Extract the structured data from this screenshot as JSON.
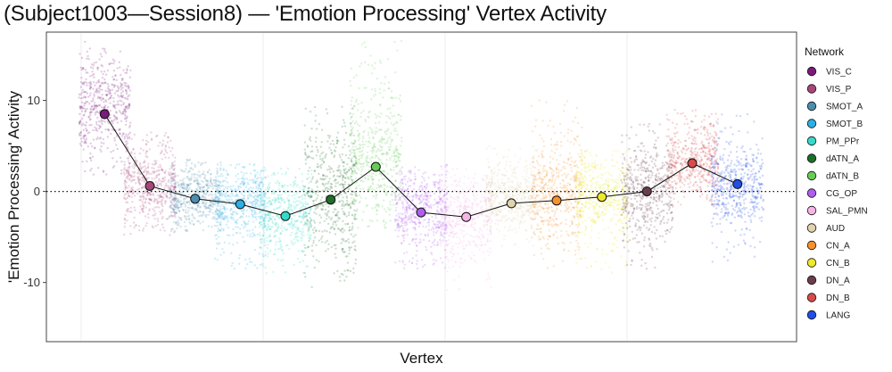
{
  "chart_data": {
    "type": "scatter",
    "title": "(Subject1003—Session8) — 'Emotion Processing' Vertex Activity",
    "xlabel": "Vertex",
    "ylabel": "'Emotion Processing' Activity",
    "ylim": [
      -16.5,
      17.5
    ],
    "yticks": [
      -10,
      0,
      10
    ],
    "ytick_labels": [
      "-10",
      "0",
      "10"
    ],
    "reference_line": 0,
    "legend_title": "Network",
    "legend_position": "right",
    "networks": [
      {
        "name": "VIS_C",
        "color": "#7B1A7B",
        "mean": 8.5,
        "range": [
          1.5,
          16.5
        ],
        "core": [
          5.5,
          13.5
        ]
      },
      {
        "name": "VIS_P",
        "color": "#A8467A",
        "mean": 0.6,
        "range": [
          -5.0,
          6.5
        ],
        "core": [
          -2.5,
          4.0
        ]
      },
      {
        "name": "SMOT_A",
        "color": "#4C8EAD",
        "mean": -0.8,
        "range": [
          -4.5,
          3.5
        ],
        "core": [
          -3.0,
          2.0
        ]
      },
      {
        "name": "SMOT_B",
        "color": "#2BB0E6",
        "mean": -1.4,
        "range": [
          -8.5,
          3.0
        ],
        "core": [
          -4.0,
          1.5
        ]
      },
      {
        "name": "PM_PPr",
        "color": "#36D9C9",
        "mean": -2.7,
        "range": [
          -9.0,
          2.5
        ],
        "core": [
          -5.5,
          0.5
        ]
      },
      {
        "name": "dATN_A",
        "color": "#1E6E2A",
        "mean": -0.9,
        "range": [
          -10.5,
          9.5
        ],
        "core": [
          -6.0,
          5.0
        ]
      },
      {
        "name": "dATN_B",
        "color": "#66CC55",
        "mean": 2.7,
        "range": [
          -4.0,
          17.0
        ],
        "core": [
          -1.5,
          9.0
        ]
      },
      {
        "name": "CG_OP",
        "color": "#B05CF0",
        "mean": -2.3,
        "range": [
          -8.5,
          3.0
        ],
        "core": [
          -5.0,
          1.0
        ]
      },
      {
        "name": "SAL_PMN",
        "color": "#F6B5E6",
        "mean": -2.8,
        "range": [
          -11.0,
          2.5
        ],
        "core": [
          -6.0,
          0.5
        ]
      },
      {
        "name": "AUD",
        "color": "#E0D3AE",
        "mean": -1.3,
        "range": [
          -6.0,
          5.0
        ],
        "core": [
          -3.5,
          2.0
        ]
      },
      {
        "name": "CN_A",
        "color": "#F5922F",
        "mean": -1.0,
        "range": [
          -8.5,
          10.0
        ],
        "core": [
          -4.5,
          4.0
        ]
      },
      {
        "name": "CN_B",
        "color": "#EFE92A",
        "mean": -0.6,
        "range": [
          -9.0,
          4.5
        ],
        "core": [
          -4.0,
          3.0
        ]
      },
      {
        "name": "DN_A",
        "color": "#6B3D4A",
        "mean": 0.0,
        "range": [
          -8.5,
          7.5
        ],
        "core": [
          -4.5,
          4.0
        ]
      },
      {
        "name": "DN_B",
        "color": "#D64B4B",
        "mean": 3.1,
        "range": [
          -1.5,
          9.0
        ],
        "core": [
          0.5,
          6.5
        ]
      },
      {
        "name": "LANG",
        "color": "#1F4FE6",
        "mean": 0.8,
        "range": [
          -8.0,
          8.5
        ],
        "core": [
          -3.0,
          4.0
        ]
      }
    ]
  }
}
